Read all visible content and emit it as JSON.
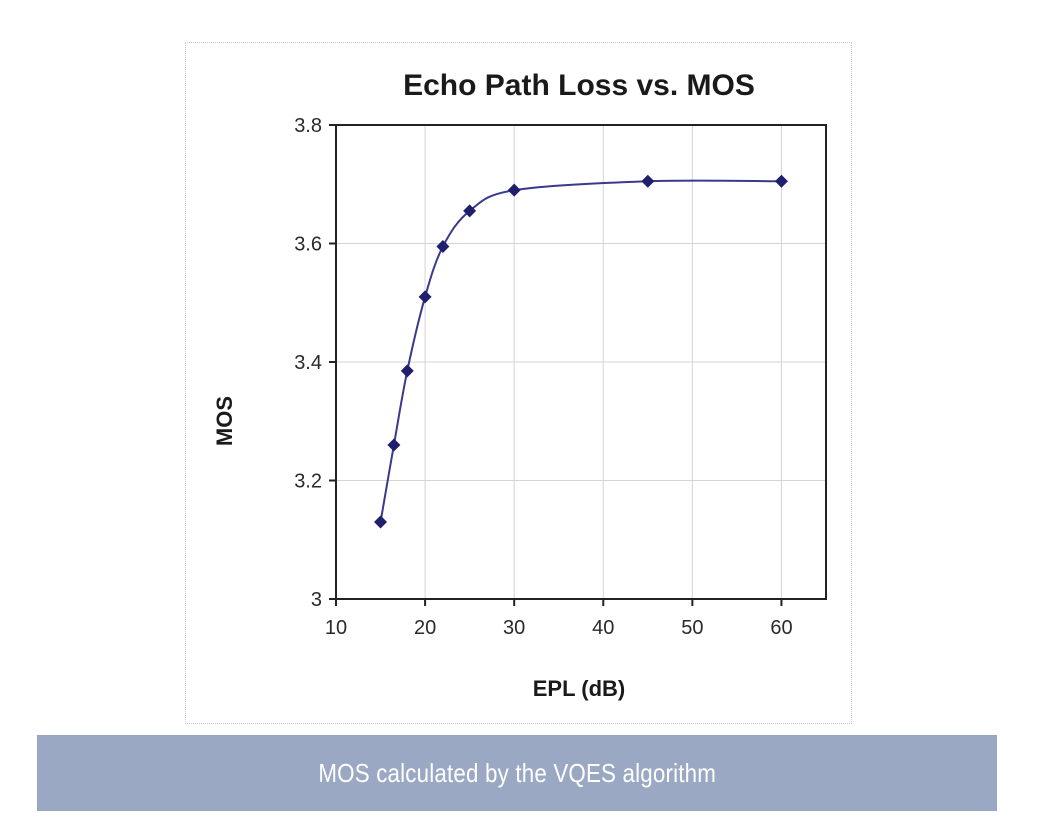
{
  "caption": "MOS calculated by the VQES algorithm",
  "chart_data": {
    "type": "line",
    "title": "Echo Path Loss vs. MOS",
    "xlabel": "EPL (dB)",
    "ylabel": "MOS",
    "xlim": [
      10,
      65
    ],
    "ylim": [
      3.0,
      3.8
    ],
    "xticks": [
      10,
      20,
      30,
      40,
      50,
      60
    ],
    "yticks": [
      3.0,
      3.2,
      3.4,
      3.6,
      3.8
    ],
    "xtick_labels": [
      "10",
      "20",
      "30",
      "40",
      "50",
      "60"
    ],
    "ytick_labels": [
      "3",
      "3.2",
      "3.4",
      "3.6",
      "3.8"
    ],
    "grid": true,
    "series": [
      {
        "x": [
          15,
          16.5,
          18,
          20,
          22,
          25,
          30,
          45,
          60
        ],
        "y": [
          3.13,
          3.26,
          3.385,
          3.51,
          3.595,
          3.655,
          3.69,
          3.705,
          3.705
        ],
        "color": "#3a3a8c",
        "marker": "diamond",
        "marker_color": "#1f1f6e"
      }
    ]
  }
}
